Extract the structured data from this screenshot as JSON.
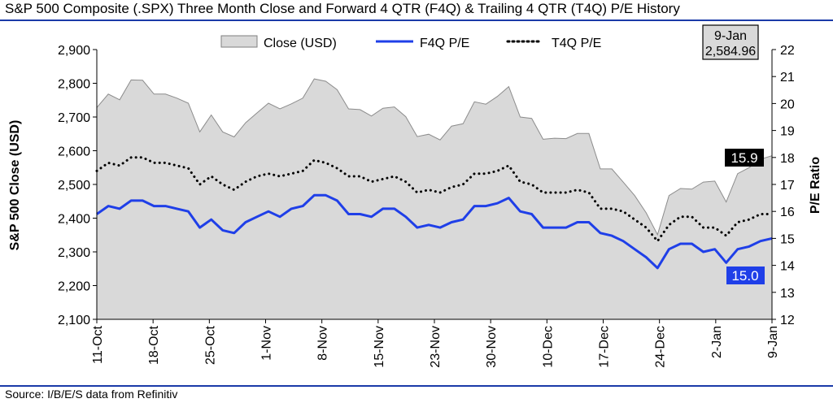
{
  "title": "S&P 500 Composite (.SPX) Three Month Close and Forward 4 QTR (F4Q) & Trailing 4 QTR (T4Q) P/E History",
  "source": "Source: I/B/E/S data from Refinitiv",
  "chart_data": {
    "type": "area",
    "title": "S&P 500 Composite (.SPX) Three Month Close and Forward 4 QTR (F4Q) & Trailing 4 QTR (T4Q) P/E History",
    "ylabel": "S&P 500 Close (USD)",
    "y2label": "P/E Ratio",
    "ylim": [
      2100,
      2900
    ],
    "yticks": [
      "2,100",
      "2,200",
      "2,300",
      "2,400",
      "2,500",
      "2,600",
      "2,700",
      "2,800",
      "2,900"
    ],
    "y2lim": [
      12,
      22
    ],
    "y2ticks": [
      "12",
      "13",
      "14",
      "15",
      "16",
      "17",
      "18",
      "19",
      "20",
      "21",
      "22"
    ],
    "xticks": [
      "11-Oct",
      "18-Oct",
      "25-Oct",
      "1-Nov",
      "8-Nov",
      "15-Nov",
      "23-Nov",
      "30-Nov",
      "10-Dec",
      "17-Dec",
      "24-Dec",
      "2-Jan",
      "9-Jan"
    ],
    "legend": {
      "placement": "top"
    },
    "series": [
      {
        "name": "Close (USD)",
        "axis": "left",
        "style": "area",
        "color": "#d9d9d9",
        "values": [
          2728,
          2768,
          2751,
          2810,
          2809,
          2768,
          2768,
          2756,
          2741,
          2656,
          2706,
          2656,
          2641,
          2683,
          2712,
          2741,
          2724,
          2739,
          2756,
          2813,
          2806,
          2781,
          2724,
          2722,
          2703,
          2726,
          2730,
          2701,
          2642,
          2649,
          2632,
          2673,
          2680,
          2745,
          2738,
          2761,
          2790,
          2700,
          2696,
          2634,
          2637,
          2636,
          2651,
          2651,
          2546,
          2546,
          2507,
          2467,
          2416,
          2351,
          2467,
          2488,
          2486,
          2507,
          2510,
          2448,
          2532,
          2550,
          2575,
          2585
        ]
      },
      {
        "name": "F4Q P/E",
        "axis": "right",
        "style": "solid",
        "color": "#1f3fe8",
        "values": [
          15.9,
          16.2,
          16.1,
          16.4,
          16.4,
          16.2,
          16.2,
          16.1,
          16.0,
          15.4,
          15.7,
          15.3,
          15.2,
          15.6,
          15.8,
          16.0,
          15.8,
          16.1,
          16.2,
          16.6,
          16.6,
          16.4,
          15.9,
          15.9,
          15.8,
          16.1,
          16.1,
          15.8,
          15.4,
          15.5,
          15.4,
          15.6,
          15.7,
          16.2,
          16.2,
          16.3,
          16.5,
          16.0,
          15.9,
          15.4,
          15.4,
          15.4,
          15.6,
          15.6,
          15.2,
          15.1,
          14.9,
          14.6,
          14.3,
          13.9,
          14.6,
          14.8,
          14.8,
          14.5,
          14.6,
          14.1,
          14.6,
          14.7,
          14.9,
          15.0
        ]
      },
      {
        "name": "T4Q P/E",
        "axis": "right",
        "style": "dotted",
        "color": "#000000",
        "values": [
          17.5,
          17.8,
          17.7,
          18.0,
          18.0,
          17.8,
          17.8,
          17.7,
          17.6,
          17.0,
          17.3,
          17.0,
          16.8,
          17.1,
          17.3,
          17.4,
          17.3,
          17.4,
          17.5,
          17.9,
          17.8,
          17.6,
          17.3,
          17.3,
          17.1,
          17.2,
          17.3,
          17.1,
          16.7,
          16.8,
          16.7,
          16.9,
          17.0,
          17.4,
          17.4,
          17.5,
          17.7,
          17.1,
          17.0,
          16.7,
          16.7,
          16.7,
          16.8,
          16.7,
          16.1,
          16.1,
          16.0,
          15.7,
          15.4,
          14.9,
          15.5,
          15.8,
          15.8,
          15.4,
          15.4,
          15.1,
          15.6,
          15.7,
          15.9,
          15.9
        ]
      }
    ],
    "annotations": {
      "latest_date": "9-Jan",
      "latest_close": "2,584.96",
      "t4q_last_label": "15.9",
      "f4q_last_label": "15.0"
    },
    "grid": false
  }
}
